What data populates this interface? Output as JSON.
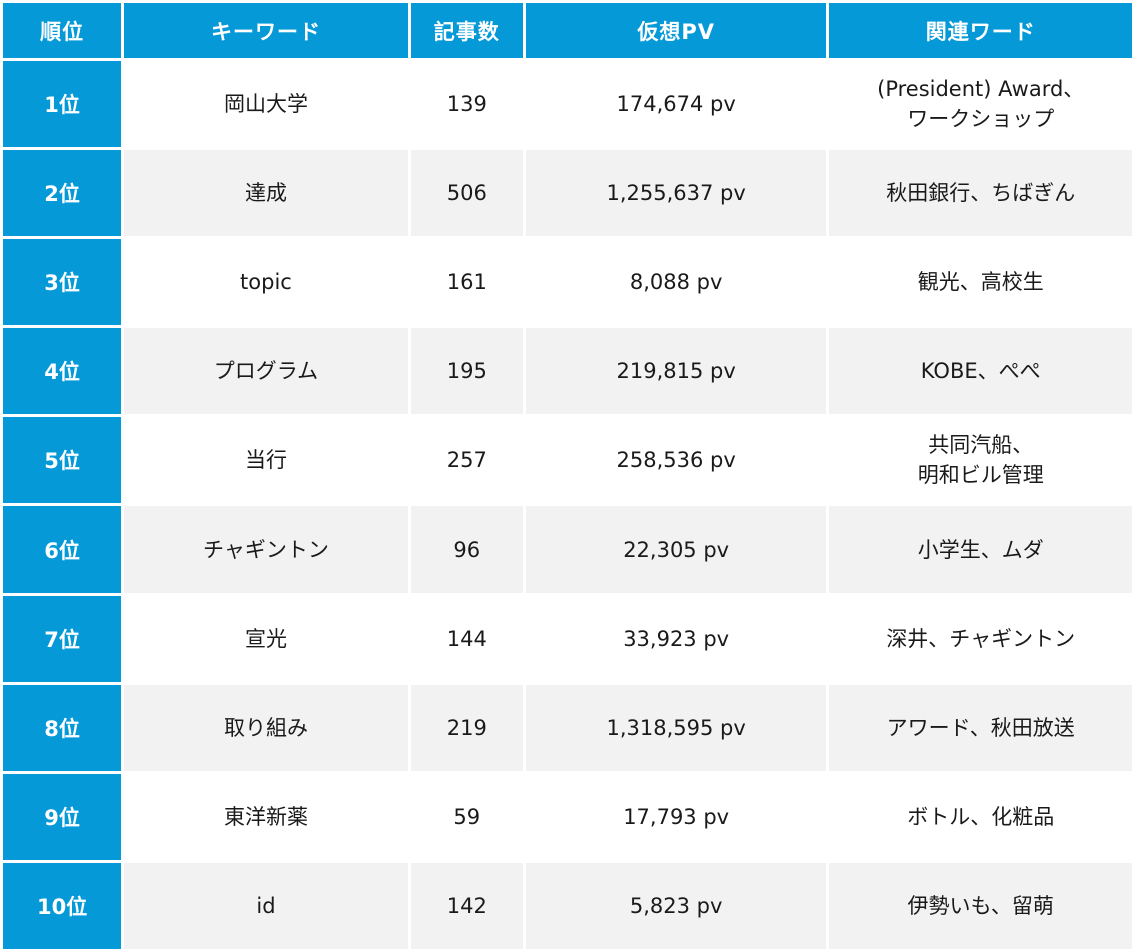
{
  "header": {
    "rank": "順位",
    "keyword": "キーワード",
    "articles": "記事数",
    "virtual_pv": "仮想PV",
    "related": "関連ワード"
  },
  "rows": [
    {
      "rank": "1位",
      "keyword": "岡山大学",
      "articles": "139",
      "pv": "174,674 pv",
      "related_line1": "(President) Award、",
      "related_line2": "ワークショップ"
    },
    {
      "rank": "2位",
      "keyword": "達成",
      "articles": "506",
      "pv": "1,255,637 pv",
      "related_line1": "秋田銀行、ちばぎん",
      "related_line2": ""
    },
    {
      "rank": "3位",
      "keyword": "topic",
      "articles": "161",
      "pv": "8,088 pv",
      "related_line1": "観光、高校生",
      "related_line2": ""
    },
    {
      "rank": "4位",
      "keyword": "プログラム",
      "articles": "195",
      "pv": "219,815 pv",
      "related_line1": "KOBE、ぺぺ",
      "related_line2": ""
    },
    {
      "rank": "5位",
      "keyword": "当行",
      "articles": "257",
      "pv": "258,536 pv",
      "related_line1": "共同汽船、",
      "related_line2": "明和ビル管理"
    },
    {
      "rank": "6位",
      "keyword": "チャギントン",
      "articles": "96",
      "pv": "22,305 pv",
      "related_line1": "小学生、ムダ",
      "related_line2": ""
    },
    {
      "rank": "7位",
      "keyword": "宣光",
      "articles": "144",
      "pv": "33,923 pv",
      "related_line1": "深井、チャギントン",
      "related_line2": ""
    },
    {
      "rank": "8位",
      "keyword": "取り組み",
      "articles": "219",
      "pv": "1,318,595 pv",
      "related_line1": "アワード、秋田放送",
      "related_line2": ""
    },
    {
      "rank": "9位",
      "keyword": "東洋新薬",
      "articles": "59",
      "pv": "17,793 pv",
      "related_line1": "ボトル、化粧品",
      "related_line2": ""
    },
    {
      "rank": "10位",
      "keyword": "id",
      "articles": "142",
      "pv": "5,823 pv",
      "related_line1": "伊勢いも、留萌",
      "related_line2": ""
    }
  ],
  "colors": {
    "header_bg": "#0599d8",
    "header_text": "#ffffff",
    "row_alt_bg": "#f2f2f2"
  }
}
